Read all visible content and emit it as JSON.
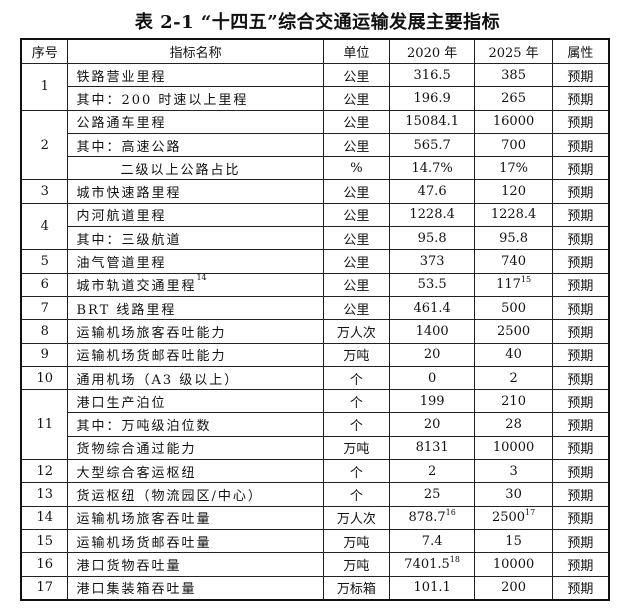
{
  "title": "表 2-1 “十四五”综合交通运输发展主要指标",
  "headers": [
    "序号",
    "指标名称",
    "单位",
    "2020 年",
    "2025 年",
    "属性"
  ],
  "groups": [
    {
      "no": "1",
      "rows": [
        {
          "name": "铁路营业里程",
          "unit": "公里",
          "v2020": "316.5",
          "v2025": "385",
          "attr": "预期"
        },
        {
          "name": "其中：200 时速以上里程",
          "unit": "公里",
          "v2020": "196.9",
          "v2025": "265",
          "attr": "预期"
        }
      ]
    },
    {
      "no": "2",
      "rows": [
        {
          "name": "公路通车里程",
          "unit": "公里",
          "v2020": "15084.1",
          "v2025": "16000",
          "attr": "预期"
        },
        {
          "name": "其中：高速公路",
          "unit": "公里",
          "v2020": "565.7",
          "v2025": "700",
          "attr": "预期"
        },
        {
          "name": "二级以上公路占比",
          "unit": "%",
          "v2020": "14.7%",
          "v2025": "17%",
          "attr": "预期",
          "indent": true
        }
      ]
    },
    {
      "no": "3",
      "rows": [
        {
          "name": "城市快速路里程",
          "unit": "公里",
          "v2020": "47.6",
          "v2025": "120",
          "attr": "预期"
        }
      ]
    },
    {
      "no": "4",
      "rows": [
        {
          "name": "内河航道里程",
          "unit": "公里",
          "v2020": "1228.4",
          "v2025": "1228.4",
          "attr": "预期"
        },
        {
          "name": "其中：三级航道",
          "unit": "公里",
          "v2020": "95.8",
          "v2025": "95.8",
          "attr": "预期"
        }
      ]
    },
    {
      "no": "5",
      "rows": [
        {
          "name": "油气管道里程",
          "unit": "公里",
          "v2020": "373",
          "v2025": "740",
          "attr": "预期"
        }
      ]
    },
    {
      "no": "6",
      "rows": [
        {
          "name": "城市轨道交通里程",
          "name_sup": "14",
          "unit": "公里",
          "v2020": "53.5",
          "v2025": "117",
          "v2025_sup": "15",
          "attr": "预期"
        }
      ]
    },
    {
      "no": "7",
      "rows": [
        {
          "name": "BRT 线路里程",
          "unit": "公里",
          "v2020": "461.4",
          "v2025": "500",
          "attr": "预期"
        }
      ]
    },
    {
      "no": "8",
      "rows": [
        {
          "name": "运输机场旅客吞吐能力",
          "unit": "万人次",
          "v2020": "1400",
          "v2025": "2500",
          "attr": "预期"
        }
      ]
    },
    {
      "no": "9",
      "rows": [
        {
          "name": "运输机场货邮吞吐能力",
          "unit": "万吨",
          "v2020": "20",
          "v2025": "40",
          "attr": "预期"
        }
      ]
    },
    {
      "no": "10",
      "rows": [
        {
          "name": "通用机场（A3 级以上）",
          "unit": "个",
          "v2020": "0",
          "v2025": "2",
          "attr": "预期"
        }
      ]
    },
    {
      "no": "11",
      "rows": [
        {
          "name": "港口生产泊位",
          "unit": "个",
          "v2020": "199",
          "v2025": "210",
          "attr": "预期"
        },
        {
          "name": "其中：万吨级泊位数",
          "unit": "个",
          "v2020": "20",
          "v2025": "28",
          "attr": "预期"
        },
        {
          "name": "货物综合通过能力",
          "unit": "万吨",
          "v2020": "8131",
          "v2025": "10000",
          "attr": "预期"
        }
      ]
    },
    {
      "no": "12",
      "rows": [
        {
          "name": "大型综合客运枢纽",
          "unit": "个",
          "v2020": "2",
          "v2025": "3",
          "attr": "预期"
        }
      ]
    },
    {
      "no": "13",
      "rows": [
        {
          "name": "货运枢纽（物流园区/中心）",
          "unit": "个",
          "v2020": "25",
          "v2025": "30",
          "attr": "预期"
        }
      ]
    },
    {
      "no": "14",
      "rows": [
        {
          "name": "运输机场旅客吞吐量",
          "unit": "万人次",
          "v2020": "878.7",
          "v2020_sup": "16",
          "v2025": "2500",
          "v2025_sup": "17",
          "attr": "预期"
        }
      ]
    },
    {
      "no": "15",
      "rows": [
        {
          "name": "运输机场货邮吞吐量",
          "unit": "万吨",
          "v2020": "7.4",
          "v2025": "15",
          "attr": "预期"
        }
      ]
    },
    {
      "no": "16",
      "rows": [
        {
          "name": "港口货物吞吐量",
          "unit": "万吨",
          "v2020": "7401.5",
          "v2020_sup": "18",
          "v2025": "10000",
          "attr": "预期"
        }
      ]
    },
    {
      "no": "17",
      "rows": [
        {
          "name": "港口集装箱吞吐量",
          "unit": "万标箱",
          "v2020": "101.1",
          "v2025": "200",
          "attr": "预期"
        }
      ]
    }
  ]
}
